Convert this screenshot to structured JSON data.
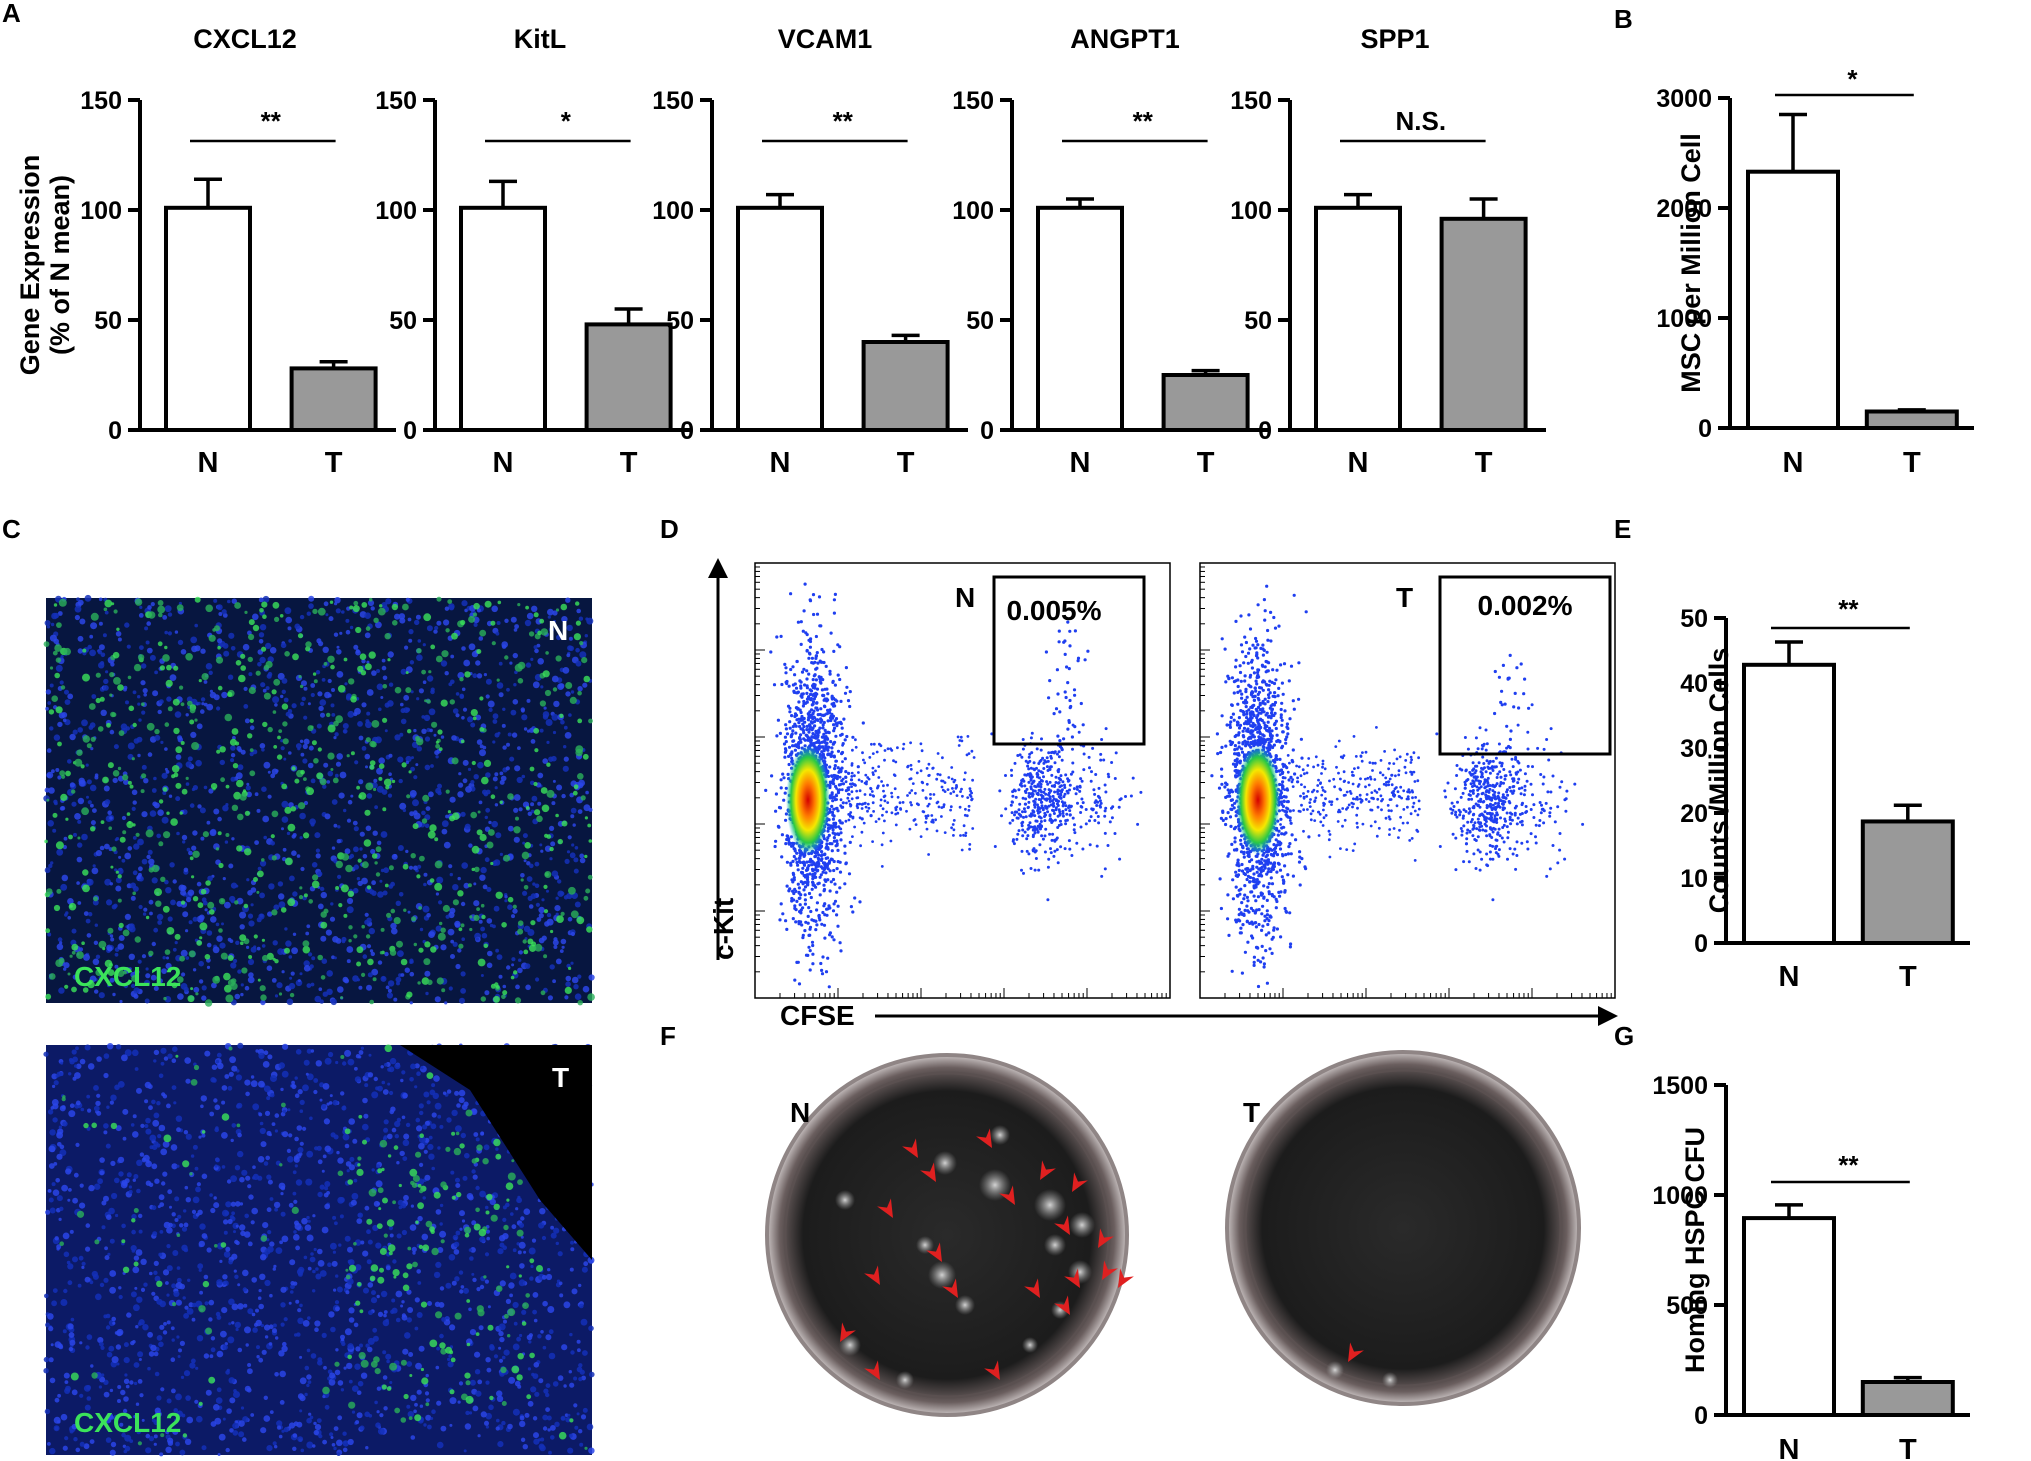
{
  "panel_letters": {
    "a": "A",
    "b": "B",
    "c": "C",
    "d": "D",
    "e": "E",
    "f": "F",
    "g": "G"
  },
  "colors": {
    "control_bar": "#ffffff",
    "treated_bar": "#999999",
    "axis": "#000000",
    "green_stain": "#3be35a",
    "blue_stain": "#1a2fd0",
    "arrowhead": "#e02020"
  },
  "chart_data": [
    {
      "id": "A1",
      "type": "bar",
      "title": "CXCL12",
      "ylabel": "Gene Expression (% of N mean)",
      "ylabel_lines": [
        "Gene Expression",
        "(% of N mean)"
      ],
      "categories": [
        "N",
        "T"
      ],
      "values": [
        101,
        28
      ],
      "errors": [
        13,
        3
      ],
      "ylim": [
        0,
        150
      ],
      "yticks": [
        "0",
        "50",
        "100",
        "150"
      ],
      "significance": "**"
    },
    {
      "id": "A2",
      "type": "bar",
      "title": "KitL",
      "categories": [
        "N",
        "T"
      ],
      "values": [
        101,
        48
      ],
      "errors": [
        12,
        7
      ],
      "ylim": [
        0,
        150
      ],
      "yticks": [
        "0",
        "50",
        "100",
        "150"
      ],
      "significance": "*"
    },
    {
      "id": "A3",
      "type": "bar",
      "title": "VCAM1",
      "categories": [
        "N",
        "T"
      ],
      "values": [
        101,
        40
      ],
      "errors": [
        6,
        3
      ],
      "ylim": [
        0,
        150
      ],
      "yticks": [
        "0",
        "50",
        "100",
        "150"
      ],
      "significance": "**"
    },
    {
      "id": "A4",
      "type": "bar",
      "title": "ANGPT1",
      "categories": [
        "N",
        "T"
      ],
      "values": [
        101,
        25
      ],
      "errors": [
        4,
        2
      ],
      "ylim": [
        0,
        150
      ],
      "yticks": [
        "0",
        "50",
        "100",
        "150"
      ],
      "significance": "**"
    },
    {
      "id": "A5",
      "type": "bar",
      "title": "SPP1",
      "categories": [
        "N",
        "T"
      ],
      "values": [
        101,
        96
      ],
      "errors": [
        6,
        9
      ],
      "ylim": [
        0,
        150
      ],
      "yticks": [
        "0",
        "50",
        "100",
        "150"
      ],
      "significance": "N.S."
    },
    {
      "id": "B",
      "type": "bar",
      "title": "",
      "ylabel": "MSC per Million Cell",
      "categories": [
        "N",
        "T"
      ],
      "values": [
        2330,
        150
      ],
      "errors": [
        520,
        15
      ],
      "ylim": [
        0,
        3000
      ],
      "yticks": [
        "0",
        "1000",
        "2000",
        "3000"
      ],
      "significance": "*"
    },
    {
      "id": "E",
      "type": "bar",
      "title": "",
      "ylabel": "Counts /Million Cells",
      "categories": [
        "N",
        "T"
      ],
      "values": [
        42.8,
        18.7
      ],
      "errors": [
        3.5,
        2.5
      ],
      "ylim": [
        0,
        50
      ],
      "yticks": [
        "0",
        "10",
        "20",
        "30",
        "40",
        "50"
      ],
      "significance": "**"
    },
    {
      "id": "G",
      "type": "bar",
      "title": "",
      "ylabel": "Homing HSPC CFU",
      "categories": [
        "N",
        "T"
      ],
      "values": [
        895,
        150
      ],
      "errors": [
        60,
        20
      ],
      "ylim": [
        0,
        1500
      ],
      "yticks": [
        "0",
        "500",
        "1000",
        "1500"
      ],
      "significance": "**"
    }
  ],
  "micrographs": {
    "top": {
      "corner": "N",
      "stain": "CXCL12"
    },
    "bottom": {
      "corner": "T",
      "stain": "CXCL12"
    }
  },
  "flow": {
    "y_axis": "c-Kit",
    "x_axis": "CFSE",
    "plots": [
      {
        "label": "N",
        "gate_percent": "0.005%"
      },
      {
        "label": "T",
        "gate_percent": "0.002%"
      }
    ]
  },
  "dishes": {
    "left_label": "N",
    "right_label": "T",
    "left_arrowheads": 20,
    "right_arrowheads": 1
  }
}
